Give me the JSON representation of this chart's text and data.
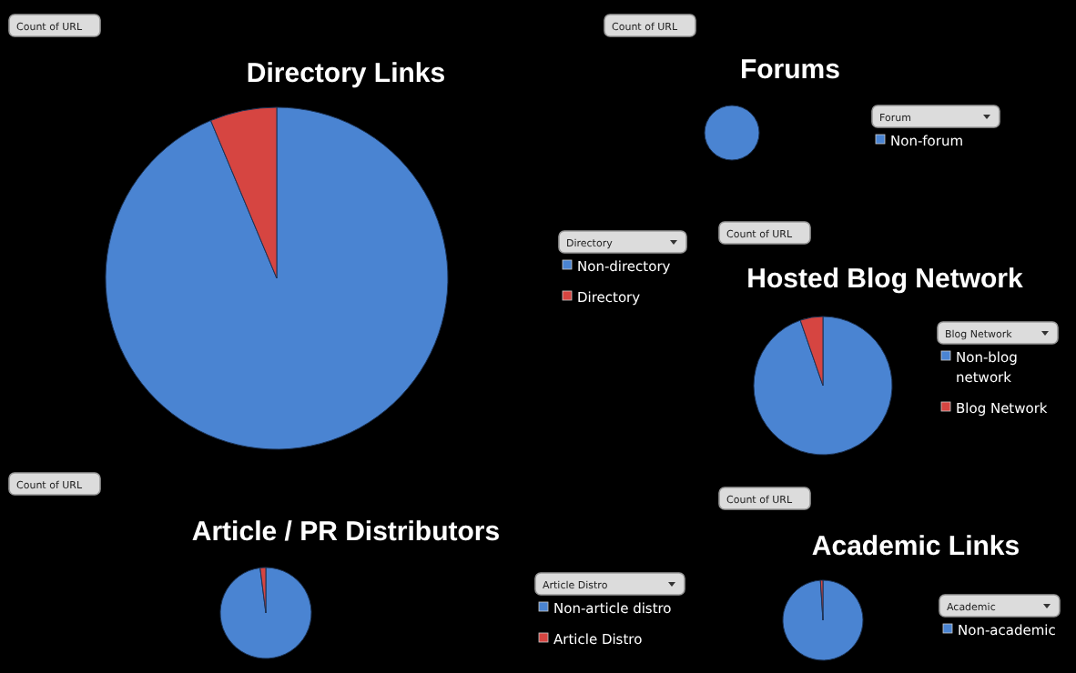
{
  "chart_data": [
    {
      "type": "pie",
      "title": "Directory Links",
      "categories": [
        "Non-directory",
        "Directory"
      ],
      "values": [
        93.7,
        6.3
      ],
      "colors": [
        "#4a84d2",
        "#d64541"
      ],
      "legend_title": "Directory",
      "legend": "right",
      "annotations": [
        "Count of URL"
      ]
    },
    {
      "type": "pie",
      "title": "Forums",
      "categories": [
        "Non-forum"
      ],
      "values": [
        100
      ],
      "colors": [
        "#4a84d2"
      ],
      "legend_title": "Forum",
      "legend": "right",
      "annotations": [
        "Count of URL"
      ]
    },
    {
      "type": "pie",
      "title": "Hosted Blog Network",
      "categories": [
        "Non-blog network",
        "Blog Network"
      ],
      "values": [
        94.7,
        5.3
      ],
      "colors": [
        "#4a84d2",
        "#d64541"
      ],
      "legend_title": "Blog Network",
      "legend": "right",
      "annotations": [
        "Count of URL"
      ]
    },
    {
      "type": "pie",
      "title": "Article / PR Distributors",
      "categories": [
        "Non-article distro",
        "Article Distro"
      ],
      "values": [
        98,
        2
      ],
      "colors": [
        "#4a84d2",
        "#d64541"
      ],
      "legend_title": "Article Distro",
      "legend": "right",
      "annotations": [
        "Count of URL"
      ]
    },
    {
      "type": "pie",
      "title": "Academic Links",
      "categories": [
        "Non-academic",
        null
      ],
      "values": [
        99,
        1
      ],
      "colors": [
        "#4a84d2",
        "#d64541"
      ],
      "legend_title": "Academic",
      "legend": "right",
      "annotations": [
        "Count of URL"
      ]
    }
  ]
}
